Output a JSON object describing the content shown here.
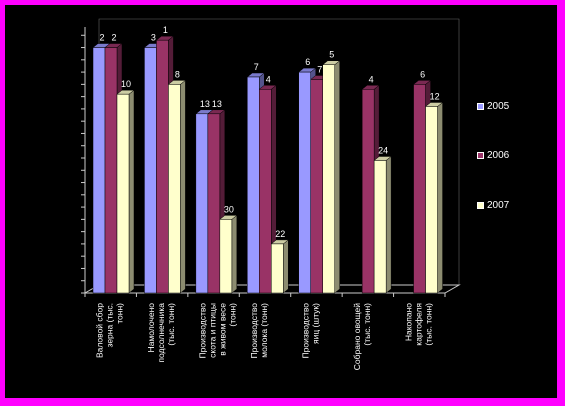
{
  "chart_data": {
    "type": "bar",
    "categories": [
      "Валовой сбор зерна (тыс. тонн)",
      "Намолочено подсолнечника (тыс. тонн)",
      "Производство скота и птицы в живом весе (тонн)",
      "Производство молока (тонн)",
      "Производство яиц (штук)",
      "Собрано овощей (тыс. тонн)",
      "Накопано картофеля (тыс. тонн)"
    ],
    "series": [
      {
        "name": "2005",
        "color": "#9999ff",
        "values": [
          100,
          100,
          73,
          88,
          90,
          null,
          null
        ],
        "labels": [
          "2",
          "3",
          "13",
          "7",
          "6",
          "",
          ""
        ]
      },
      {
        "name": "2006",
        "color": "#993366",
        "values": [
          100,
          103,
          73,
          83,
          87,
          83,
          85
        ],
        "labels": [
          "2",
          "1",
          "13",
          "4",
          "7",
          "4",
          "6"
        ]
      },
      {
        "name": "2007",
        "color": "#ffffcc",
        "values": [
          81,
          85,
          30,
          20,
          93,
          54,
          76
        ],
        "labels": [
          "10",
          "8",
          "30",
          "22",
          "5",
          "24",
          "12"
        ]
      }
    ],
    "ylim": [
      0,
      110
    ],
    "legend": "right"
  }
}
